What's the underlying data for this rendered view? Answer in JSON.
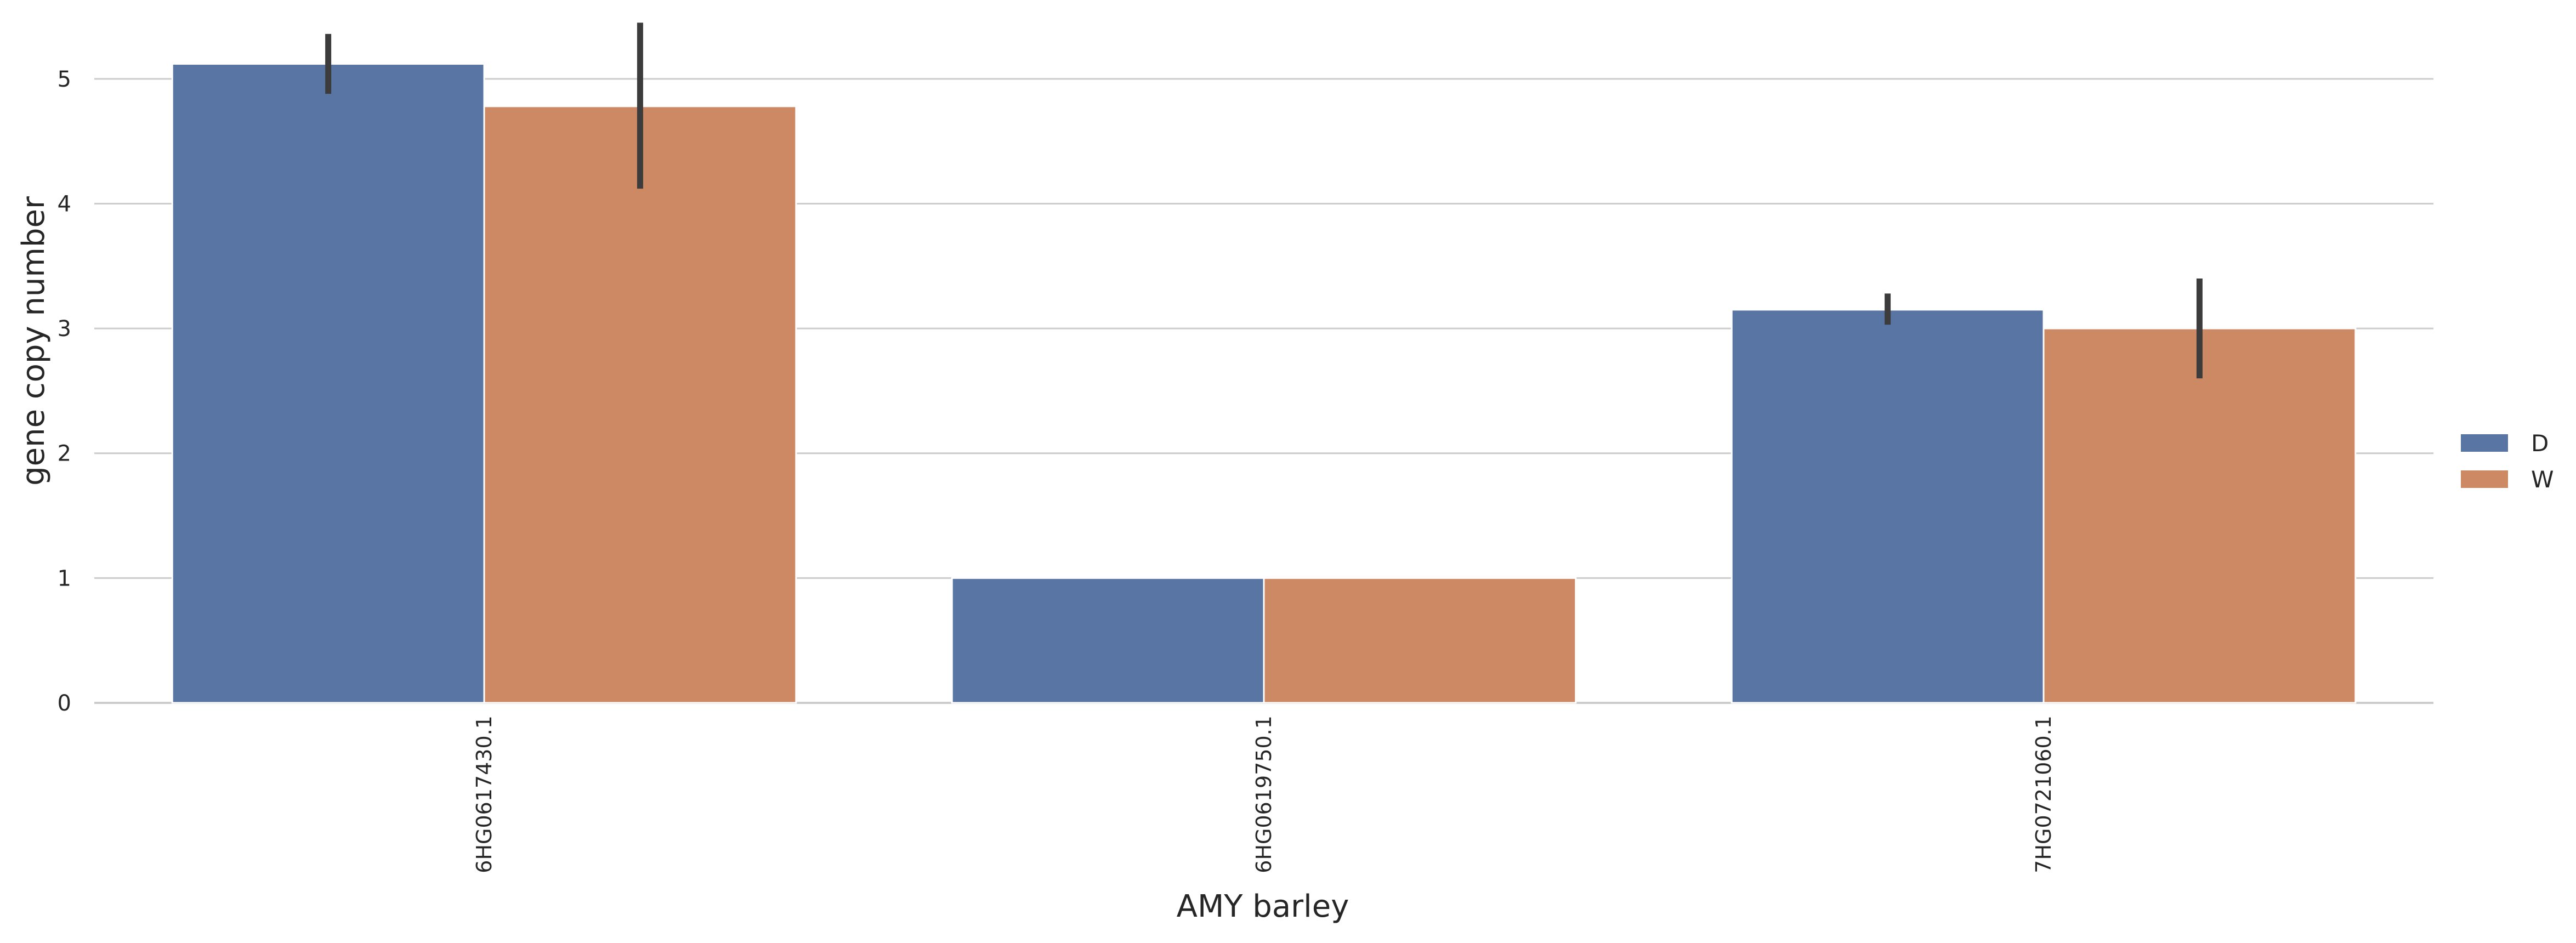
{
  "chart_data": {
    "type": "bar",
    "title": "",
    "xlabel": "AMY barley",
    "ylabel": "gene copy number",
    "categories": [
      "6HG0617430.1",
      "6HG0619750.1",
      "7HG0721060.1"
    ],
    "series": [
      {
        "name": "D",
        "color": "#5975a4",
        "values": [
          5.12,
          1.0,
          3.15
        ],
        "error_low": [
          4.88,
          1.0,
          3.03
        ],
        "error_high": [
          5.36,
          1.0,
          3.28
        ]
      },
      {
        "name": "W",
        "color": "#cc8963",
        "values": [
          4.78,
          1.0,
          3.0
        ],
        "error_low": [
          4.12,
          1.0,
          2.6
        ],
        "error_high": [
          5.45,
          1.0,
          3.4
        ]
      }
    ],
    "ylim": [
      0,
      5.5
    ],
    "yticks": [
      "0",
      "1",
      "2",
      "3",
      "4",
      "5"
    ],
    "grid": true,
    "legend_position": "right"
  }
}
